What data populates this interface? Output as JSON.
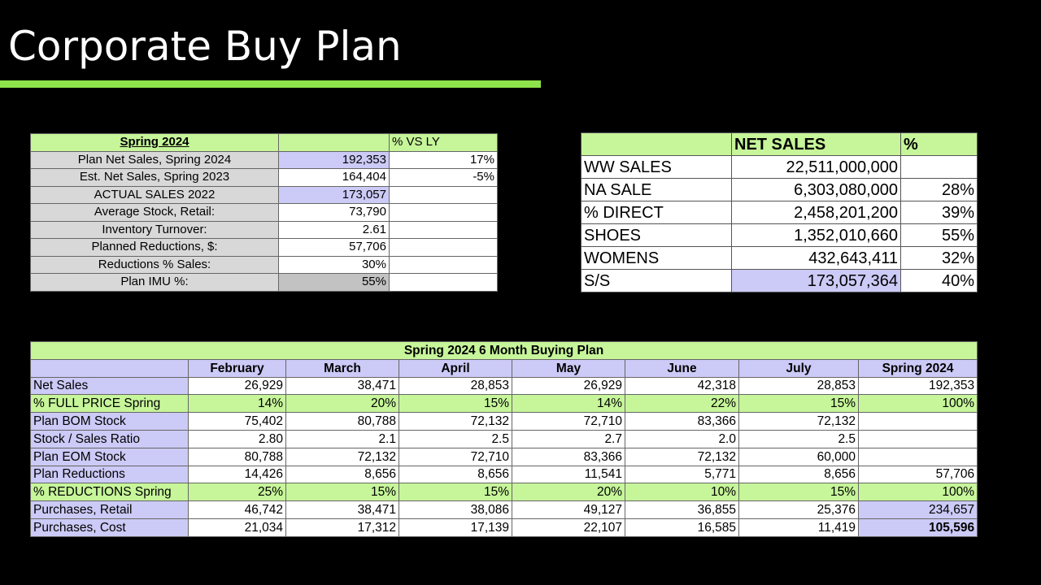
{
  "title": "Corporate Buy Plan",
  "colors": {
    "accent_green": "#8fe34a",
    "cell_green": "#c6f59a",
    "cell_purple": "#cccaf6",
    "label_gray": "#d8d8d8"
  },
  "summary": {
    "header": "Spring 2024",
    "col3_header": "% VS LY",
    "rows": [
      {
        "label": "Plan Net Sales, Spring 2024",
        "value": "192,353",
        "pct": "17%"
      },
      {
        "label": "Est. Net Sales, Spring 2023",
        "value": "164,404",
        "pct": "-5%"
      },
      {
        "label": "ACTUAL SALES 2022",
        "value": "173,057",
        "pct": ""
      },
      {
        "label": "Average Stock, Retail:",
        "value": "73,790",
        "pct": ""
      },
      {
        "label": "Inventory Turnover:",
        "value": "2.61",
        "pct": ""
      },
      {
        "label": "Planned Reductions, $:",
        "value": "57,706",
        "pct": ""
      },
      {
        "label": "Reductions % Sales:",
        "value": "30%",
        "pct": ""
      },
      {
        "label": "Plan IMU %:",
        "value": "55%",
        "pct": ""
      }
    ]
  },
  "net_sales": {
    "col2_header": "NET SALES",
    "col3_header": "%",
    "rows": [
      {
        "label": "WW SALES",
        "value": "22,511,000,000",
        "pct": ""
      },
      {
        "label": "NA SALE",
        "value": "6,303,080,000",
        "pct": "28%"
      },
      {
        "label": "% DIRECT",
        "value": "2,458,201,200",
        "pct": "39%"
      },
      {
        "label": "SHOES",
        "value": "1,352,010,660",
        "pct": "55%"
      },
      {
        "label": "WOMENS",
        "value": "432,643,411",
        "pct": "32%"
      },
      {
        "label": "S/S",
        "value": "173,057,364",
        "pct": "40%"
      }
    ]
  },
  "buying_plan": {
    "caption": "Spring 2024 6 Month Buying Plan",
    "columns": [
      "February",
      "March",
      "April",
      "May",
      "June",
      "July",
      "Spring 2024"
    ],
    "rows": [
      {
        "label": "Net Sales",
        "values": [
          "26,929",
          "38,471",
          "28,853",
          "26,929",
          "42,318",
          "28,853",
          "192,353"
        ]
      },
      {
        "label": "% FULL PRICE Spring",
        "values": [
          "14%",
          "20%",
          "15%",
          "14%",
          "22%",
          "15%",
          "100%"
        ]
      },
      {
        "label": "Plan BOM Stock",
        "values": [
          "75,402",
          "80,788",
          "72,132",
          "72,710",
          "83,366",
          "72,132",
          ""
        ]
      },
      {
        "label": "Stock / Sales Ratio",
        "values": [
          "2.80",
          "2.1",
          "2.5",
          "2.7",
          "2.0",
          "2.5",
          ""
        ]
      },
      {
        "label": "Plan EOM Stock",
        "values": [
          "80,788",
          "72,132",
          "72,710",
          "83,366",
          "72,132",
          "60,000",
          ""
        ]
      },
      {
        "label": "Plan Reductions",
        "values": [
          "14,426",
          "8,656",
          "8,656",
          "11,541",
          "5,771",
          "8,656",
          "57,706"
        ]
      },
      {
        "label": "% REDUCTIONS Spring",
        "values": [
          "25%",
          "15%",
          "15%",
          "20%",
          "10%",
          "15%",
          "100%"
        ]
      },
      {
        "label": "Purchases, Retail",
        "values": [
          "46,742",
          "38,471",
          "38,086",
          "49,127",
          "36,855",
          "25,376",
          "234,657"
        ]
      },
      {
        "label": "Purchases, Cost",
        "values": [
          "21,034",
          "17,312",
          "17,139",
          "22,107",
          "16,585",
          "11,419",
          "105,596"
        ]
      }
    ]
  }
}
